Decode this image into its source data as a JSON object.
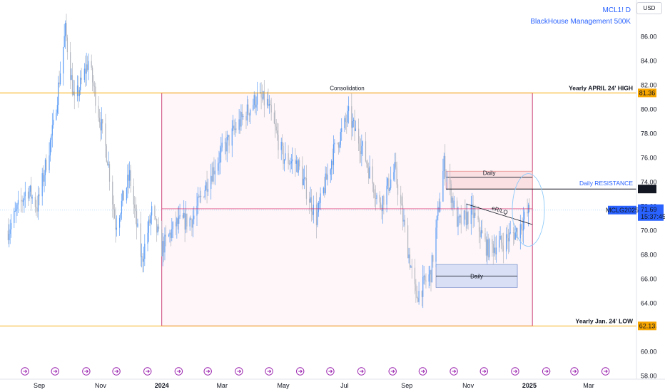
{
  "header": {
    "symbol": "MCL1! D",
    "author": "BlackHouse Management 500K",
    "currency": "USD"
  },
  "colors": {
    "up": "#5b9cf6",
    "down": "#b2b5be",
    "level": "#f7a600",
    "accent": "#2962ff",
    "box": "#c2185b",
    "resistance": "#131722"
  },
  "chart_data": {
    "type": "candlestick",
    "ylim": [
      58,
      90
    ],
    "yticks": [
      58,
      60,
      62,
      64,
      66,
      68,
      70,
      72,
      74,
      76,
      78,
      80,
      82,
      84,
      86
    ],
    "ytick_labels": [
      "58.00",
      "60.00",
      "62.00",
      "64.00",
      "66.00",
      "68.00",
      "70.00",
      "72.00",
      "74.00",
      "76.00",
      "78.00",
      "80.00",
      "82.00",
      "84.00",
      "86.00"
    ],
    "x_start": "2023-08-01",
    "x_end": "2025-04-05",
    "xticks": [
      {
        "label": "Sep",
        "date": "2023-09-01"
      },
      {
        "label": "Nov",
        "date": "2023-11-01"
      },
      {
        "label": "2024",
        "date": "2024-01-01"
      },
      {
        "label": "Mar",
        "date": "2024-03-01"
      },
      {
        "label": "May",
        "date": "2024-05-01"
      },
      {
        "label": "Jul",
        "date": "2024-07-01"
      },
      {
        "label": "Sep",
        "date": "2024-09-01"
      },
      {
        "label": "Nov",
        "date": "2024-11-01"
      },
      {
        "label": "2025",
        "date": "2025-01-01"
      },
      {
        "label": "Mar",
        "date": "2025-03-01"
      }
    ],
    "price_path": [
      [
        "2023-08-01",
        70.0
      ],
      [
        "2023-08-20",
        73.5
      ],
      [
        "2023-08-30",
        72.0
      ],
      [
        "2023-09-15",
        78.5
      ],
      [
        "2023-09-27",
        86.5
      ],
      [
        "2023-10-06",
        80.5
      ],
      [
        "2023-10-20",
        84.0
      ],
      [
        "2023-11-08",
        76.0
      ],
      [
        "2023-11-16",
        70.5
      ],
      [
        "2023-11-30",
        74.5
      ],
      [
        "2023-12-12",
        67.5
      ],
      [
        "2023-12-22",
        71.5
      ],
      [
        "2024-01-01",
        68.5
      ],
      [
        "2024-01-15",
        70.5
      ],
      [
        "2024-02-01",
        71.0
      ],
      [
        "2024-02-15",
        74.0
      ],
      [
        "2024-03-01",
        76.5
      ],
      [
        "2024-03-15",
        78.5
      ],
      [
        "2024-04-05",
        81.0
      ],
      [
        "2024-04-15",
        80.5
      ],
      [
        "2024-05-01",
        76.0
      ],
      [
        "2024-05-15",
        75.5
      ],
      [
        "2024-06-03",
        71.0
      ],
      [
        "2024-06-20",
        76.5
      ],
      [
        "2024-07-05",
        79.5
      ],
      [
        "2024-07-20",
        76.5
      ],
      [
        "2024-08-05",
        72.0
      ],
      [
        "2024-08-20",
        75.0
      ],
      [
        "2024-09-10",
        64.5
      ],
      [
        "2024-09-25",
        66.5
      ],
      [
        "2024-10-08",
        75.5
      ],
      [
        "2024-10-22",
        70.5
      ],
      [
        "2024-11-05",
        71.5
      ],
      [
        "2024-11-20",
        68.5
      ],
      [
        "2024-12-05",
        69.0
      ],
      [
        "2024-12-20",
        70.0
      ],
      [
        "2025-01-01",
        71.69
      ]
    ],
    "consolidation": {
      "label": "Consolidation",
      "from": "2024-01-01",
      "to": "2025-01-04",
      "low": 62.13,
      "high": 81.36
    },
    "levels": [
      {
        "name": "Yearly APRIL 24' HIGH",
        "value": 81.36,
        "label": "81.36"
      },
      {
        "name": "Yearly Jan. 24' LOW",
        "value": 62.13,
        "label": "62.13"
      }
    ],
    "daily_resistance": {
      "name": "Daily RESISTANCE",
      "value": 73.43,
      "label": "73.43",
      "from": "2024-10-10"
    },
    "price_line": {
      "value": 71.69
    },
    "mid_line": {
      "value": 71.8,
      "from": "2024-01-01",
      "to": "2025-01-04"
    },
    "zones": [
      {
        "label": "Daily",
        "from": "2024-10-10",
        "to": "2025-01-04",
        "low": 73.43,
        "high": 74.9,
        "color": "#f8d7da"
      },
      {
        "label": "Daily",
        "from": "2024-09-30",
        "to": "2024-12-20",
        "low": 65.3,
        "high": 67.2,
        "color": "#c9d6f3"
      }
    ],
    "trendline": {
      "label": "eR/LQ",
      "from": [
        "2024-10-30",
        72.2
      ],
      "to": [
        "2025-01-04",
        70.5
      ]
    },
    "circle": {
      "center": [
        "2024-12-31",
        71.7
      ],
      "radius_x_days": 16,
      "radius_y": 3.0
    },
    "last_price": {
      "symbol": "MCLG2025",
      "value": "71.69",
      "countdown": "15:37:45"
    },
    "event_markers": [
      "2023-09-01",
      "2023-10-01",
      "2023-11-01",
      "2023-12-01",
      "2024-01-01",
      "2024-02-01",
      "2024-03-01",
      "2024-04-01",
      "2024-05-01",
      "2024-06-01",
      "2024-07-01",
      "2024-08-01",
      "2024-09-01",
      "2024-10-01",
      "2024-11-01",
      "2024-12-01",
      "2025-01-01",
      "2025-02-01",
      "2025-03-01",
      "2025-04-01"
    ]
  }
}
